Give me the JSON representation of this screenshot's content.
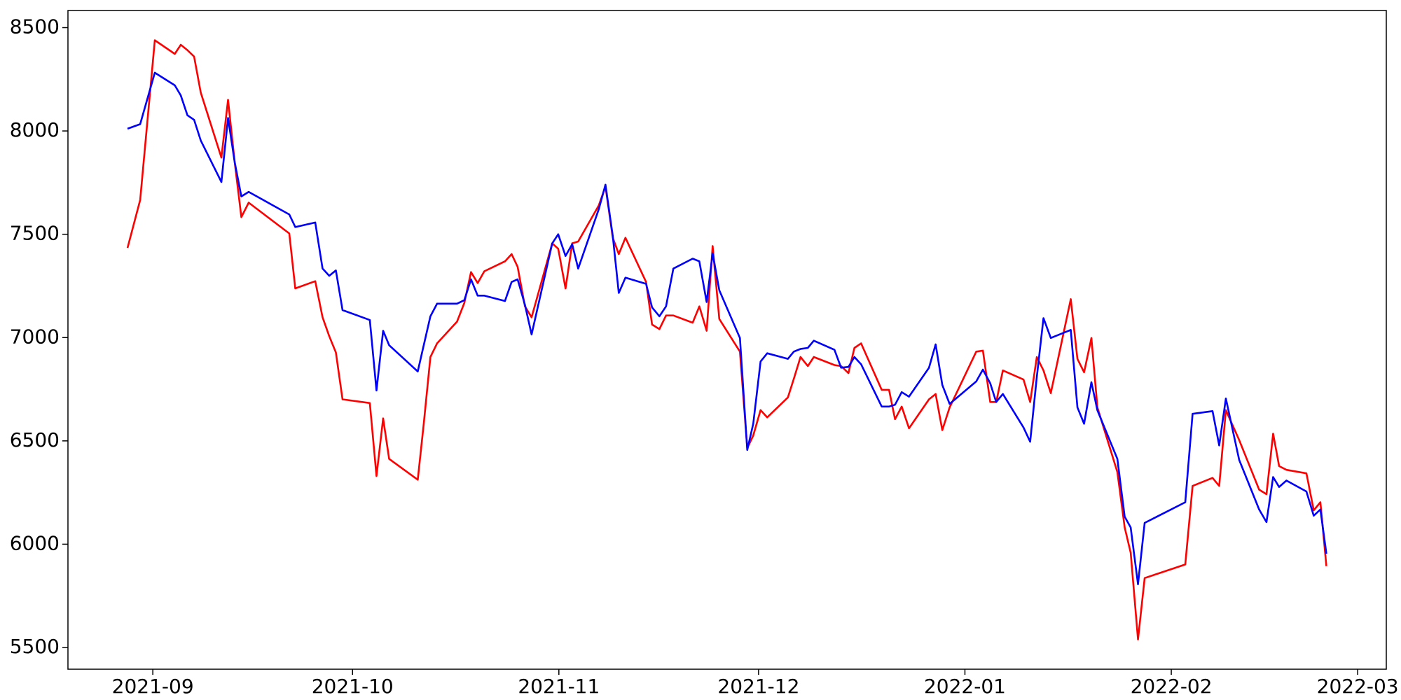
{
  "chart_data": {
    "type": "line",
    "x": [
      -3.8,
      -1.9,
      0.3,
      3.3,
      4.2,
      5.2,
      6.2,
      7.2,
      10.3,
      11.3,
      12.3,
      13.3,
      14.4,
      20.5,
      21.4,
      24.4,
      25.5,
      26.5,
      27.5,
      28.5,
      32.6,
      33.6,
      34.6,
      35.5,
      39.8,
      40.7,
      41.7,
      42.7,
      45.7,
      46.8,
      47.8,
      48.8,
      49.8,
      52.9,
      53.9,
      54.8,
      55.9,
      56.9,
      60.0,
      60.9,
      62.0,
      63.0,
      63.9,
      67.0,
      68.0,
      69.1,
      70.0,
      71.0,
      74.1,
      75.0,
      76.1,
      77.1,
      78.2,
      81.1,
      82.1,
      83.2,
      84.1,
      85.1,
      88.2,
      89.3,
      90.2,
      91.3,
      92.3,
      95.4,
      96.3,
      97.3,
      98.4,
      99.3,
      102.4,
      103.4,
      104.5,
      105.4,
      106.4,
      109.5,
      110.6,
      111.5,
      112.5,
      113.6,
      116.6,
      117.6,
      118.6,
      119.7,
      123.7,
      124.7,
      125.8,
      126.7,
      127.7,
      130.8,
      131.8,
      132.8,
      133.8,
      134.9,
      137.9,
      138.9,
      139.9,
      141.0,
      141.9,
      144.9,
      146.0,
      146.9,
      148.0,
      149.0,
      155.1,
      156.2,
      159.2,
      160.2,
      161.2,
      163.2,
      166.2,
      167.3,
      168.3,
      169.2,
      170.3,
      173.3,
      174.4,
      175.4,
      176.3
    ],
    "series": [
      {
        "color": "#ff0000",
        "values": [
          7434,
          7666,
          8439,
          8373,
          8417,
          8391,
          8360,
          8186,
          7871,
          8151,
          7849,
          7583,
          7653,
          7504,
          7238,
          7273,
          7098,
          7007,
          6928,
          6701,
          6683,
          6330,
          6609,
          6413,
          6312,
          6583,
          6906,
          6972,
          7077,
          7168,
          7317,
          7264,
          7321,
          7369,
          7404,
          7343,
          7151,
          7098,
          7456,
          7430,
          7238,
          7456,
          7465,
          7640,
          7731,
          7483,
          7404,
          7483,
          7269,
          7063,
          7041,
          7107,
          7107,
          7072,
          7151,
          7033,
          7443,
          7090,
          6932,
          6465,
          6526,
          6649,
          6614,
          6710,
          6801,
          6906,
          6862,
          6906,
          6867,
          6862,
          6828,
          6950,
          6972,
          6747,
          6747,
          6605,
          6666,
          6561,
          6701,
          6727,
          6552,
          6662,
          6932,
          6937,
          6688,
          6688,
          6841,
          6797,
          6688,
          6906,
          6841,
          6731,
          7186,
          6897,
          6832,
          6998,
          6662,
          6349,
          6081,
          5959,
          5539,
          5836,
          5902,
          6282,
          6321,
          6282,
          6649,
          6504,
          6264,
          6242,
          6535,
          6378,
          6360,
          6343,
          6164,
          6203,
          5894
        ]
      },
      {
        "color": "#0000ff",
        "values": [
          8011,
          8033,
          8282,
          8221,
          8172,
          8076,
          8054,
          7954,
          7753,
          8063,
          7849,
          7683,
          7705,
          7596,
          7535,
          7557,
          7334,
          7299,
          7325,
          7133,
          7085,
          6744,
          7033,
          6963,
          6836,
          6963,
          7103,
          7164,
          7164,
          7181,
          7282,
          7203,
          7203,
          7177,
          7269,
          7282,
          7159,
          7015,
          7456,
          7500,
          7395,
          7452,
          7334,
          7622,
          7740,
          7491,
          7216,
          7290,
          7260,
          7146,
          7103,
          7151,
          7334,
          7382,
          7369,
          7172,
          7408,
          7229,
          6998,
          6456,
          6583,
          6884,
          6924,
          6897,
          6932,
          6945,
          6950,
          6985,
          6941,
          6854,
          6858,
          6906,
          6871,
          6666,
          6666,
          6675,
          6736,
          6714,
          6854,
          6967,
          6771,
          6679,
          6788,
          6845,
          6779,
          6688,
          6727,
          6565,
          6496,
          6810,
          7094,
          6998,
          7037,
          6662,
          6583,
          6784,
          6648,
          6413,
          6133,
          6081,
          5806,
          6103,
          6203,
          6631,
          6644,
          6478,
          6705,
          6408,
          6168,
          6107,
          6325,
          6277,
          6308,
          6255,
          6138,
          6168,
          5954
        ]
      }
    ],
    "xlim": [
      -12.75,
      185.3
    ],
    "xticks": [
      {
        "value": 0,
        "label": "2021-09"
      },
      {
        "value": 30,
        "label": "2021-10"
      },
      {
        "value": 61,
        "label": "2021-11"
      },
      {
        "value": 91,
        "label": "2021-12"
      },
      {
        "value": 122,
        "label": "2022-01"
      },
      {
        "value": 153,
        "label": "2022-02"
      },
      {
        "value": 181,
        "label": "2022-03"
      }
    ],
    "ylim": [
      5395,
      8583
    ],
    "yticks": [
      5500,
      6000,
      6500,
      7000,
      7500,
      8000,
      8500
    ],
    "grid": false
  }
}
